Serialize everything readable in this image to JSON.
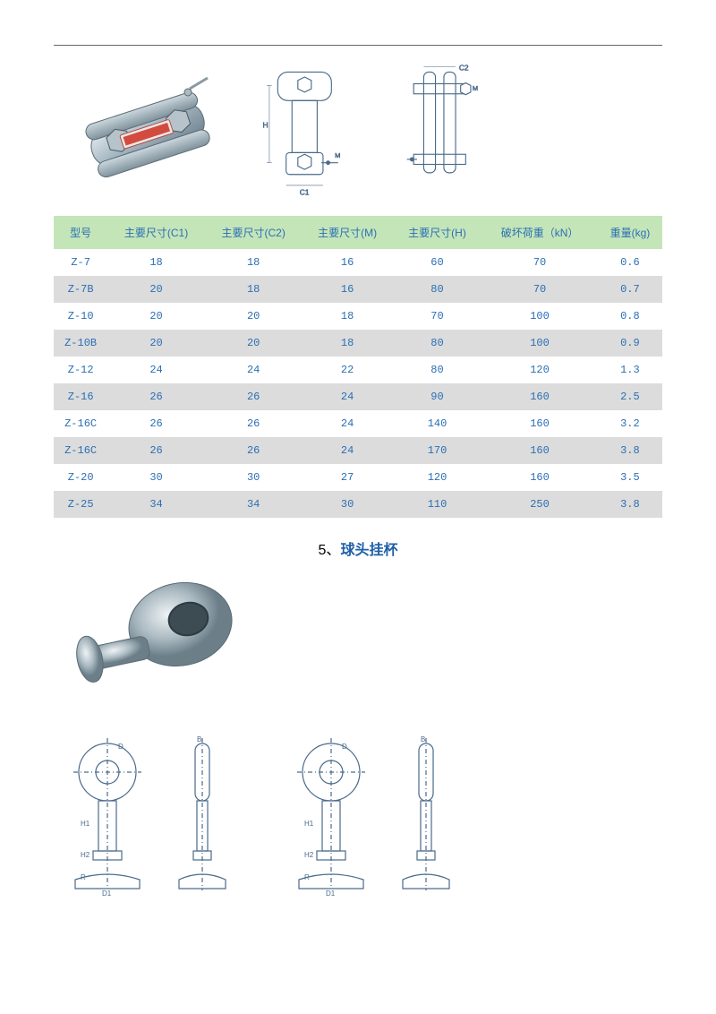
{
  "table1": {
    "columns": [
      "型号",
      "主要尺寸(C1)",
      "主要尺寸(C2)",
      "主要尺寸(M)",
      "主要尺寸(H)",
      "破坏荷重（kN）",
      "重量(kg)"
    ],
    "rows": [
      [
        "Z-7",
        "18",
        "18",
        "16",
        "60",
        "70",
        "0.6"
      ],
      [
        "Z-7B",
        "20",
        "18",
        "16",
        "80",
        "70",
        "0.7"
      ],
      [
        "Z-10",
        "20",
        "20",
        "18",
        "70",
        "100",
        "0.8"
      ],
      [
        "Z-10B",
        "20",
        "20",
        "18",
        "80",
        "100",
        "0.9"
      ],
      [
        "Z-12",
        "24",
        "24",
        "22",
        "80",
        "120",
        "1.3"
      ],
      [
        "Z-16",
        "26",
        "26",
        "24",
        "90",
        "160",
        "2.5"
      ],
      [
        "Z-16C",
        "26",
        "26",
        "24",
        "140",
        "160",
        "3.2"
      ],
      [
        "Z-16C",
        "26",
        "26",
        "24",
        "170",
        "160",
        "3.8"
      ],
      [
        "Z-20",
        "30",
        "30",
        "27",
        "120",
        "160",
        "3.5"
      ],
      [
        "Z-25",
        "34",
        "34",
        "30",
        "110",
        "250",
        "3.8"
      ]
    ],
    "header_bg": "#c4e5b8",
    "text_color": "#2b6fb5",
    "row_alt_bg": "#dcdcdc"
  },
  "section": {
    "number": "5、",
    "title": "球头挂杯"
  },
  "drawing_labels": {
    "c1": "C1",
    "c2": "C2",
    "m": "M",
    "h": "H",
    "d": "D",
    "d1": "D1",
    "h1": "H1",
    "h2": "H2",
    "r": "R",
    "b": "B"
  }
}
